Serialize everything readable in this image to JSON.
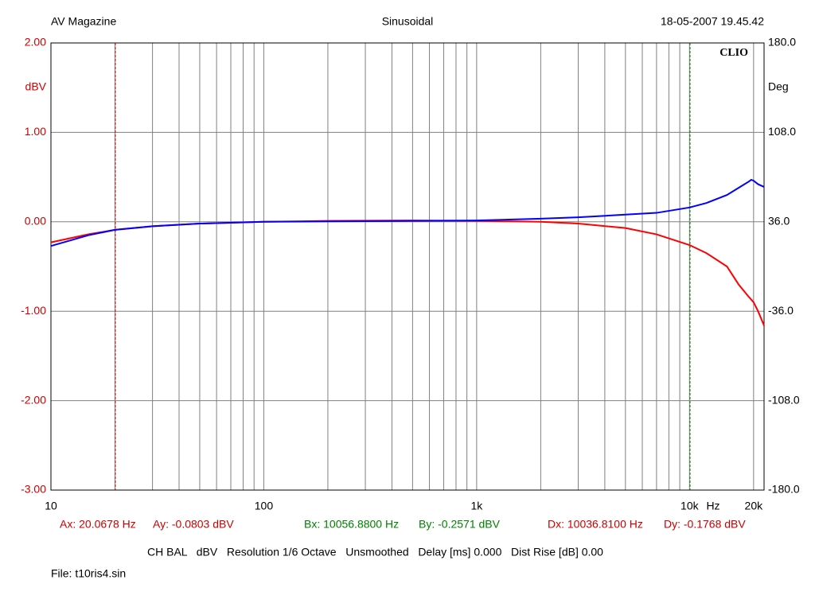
{
  "chart_data": {
    "type": "line",
    "header_left": "AV Magazine",
    "title": "Sinusoidal",
    "header_right": "18-05-2007 19.45.42",
    "brand": "CLIO",
    "ylabel": "dBV",
    "y2label": "Deg",
    "xunit": "Hz",
    "xscale": "log",
    "grid": true,
    "xlim": [
      10,
      22400
    ],
    "xticks": [
      10,
      100,
      {
        "value": 1000,
        "label": "1k"
      },
      {
        "value": 10000,
        "label": "10k"
      },
      {
        "value": 20000,
        "label": "20k"
      }
    ],
    "x_minor_ticks": [
      20,
      30,
      40,
      50,
      60,
      70,
      80,
      90,
      200,
      300,
      400,
      500,
      600,
      700,
      800,
      900,
      2000,
      3000,
      4000,
      5000,
      6000,
      7000,
      8000,
      9000
    ],
    "ylim": [
      -3,
      2
    ],
    "yticks": [
      {
        "value": 2,
        "label": "2.00"
      },
      {
        "value": 1,
        "label": "1.00"
      },
      {
        "value": 0,
        "label": "0.00"
      },
      {
        "value": -1,
        "label": "-1.00"
      },
      {
        "value": -2,
        "label": "-2.00"
      },
      {
        "value": -3,
        "label": "-3.00"
      }
    ],
    "y2lim": [
      -180,
      180
    ],
    "y2ticks": [
      {
        "value": 180,
        "label": "180.0"
      },
      {
        "value": 108,
        "label": "108.0"
      },
      {
        "value": 36,
        "label": "36.0"
      },
      {
        "value": -36,
        "label": "-36.0"
      },
      {
        "value": -108,
        "label": "-108.0"
      },
      {
        "value": -180,
        "label": "-180.0"
      }
    ],
    "x": [
      10,
      15,
      20,
      30,
      50,
      100,
      200,
      500,
      1000,
      2000,
      3000,
      5000,
      7000,
      10000,
      12000,
      15000,
      17000,
      19000,
      19500,
      20000,
      21000,
      22400
    ],
    "series": [
      {
        "color": "#ff0000",
        "values": [
          -0.23,
          -0.14,
          -0.09,
          -0.05,
          -0.02,
          0,
          0.01,
          0.015,
          0.01,
          0,
          -0.02,
          -0.07,
          -0.14,
          -0.26,
          -0.35,
          -0.5,
          -0.7,
          -0.84,
          -0.87,
          -0.9,
          -1.0,
          -1.16
        ]
      },
      {
        "color": "#0000ff",
        "values": [
          -0.27,
          -0.15,
          -0.09,
          -0.05,
          -0.02,
          0,
          0.005,
          0.01,
          0.015,
          0.035,
          0.05,
          0.08,
          0.1,
          0.16,
          0.21,
          0.3,
          0.38,
          0.45,
          0.47,
          0.46,
          0.42,
          0.39
        ]
      }
    ],
    "cursors": [
      {
        "x": 20.0678,
        "color": "#cc0000",
        "x_text": "Ax: 20.0678 Hz",
        "y_text": "Ay: -0.0803 dBV"
      },
      {
        "x": 10056.88,
        "color": "#008000",
        "x_text": "Bx: 10056.8800 Hz",
        "y_text": "By: -0.2571 dBV"
      }
    ],
    "delta": {
      "color": "#cc0000",
      "x_text": "Dx: 10036.8100 Hz",
      "y_text": "Dy: -0.1768 dBV"
    },
    "settings": "CH BAL   dBV   Resolution 1/6 Octave   Unsmoothed   Delay [ms] 0.000   Dist Rise [dB] 0.00",
    "file": "File: t10ris4.sin"
  }
}
